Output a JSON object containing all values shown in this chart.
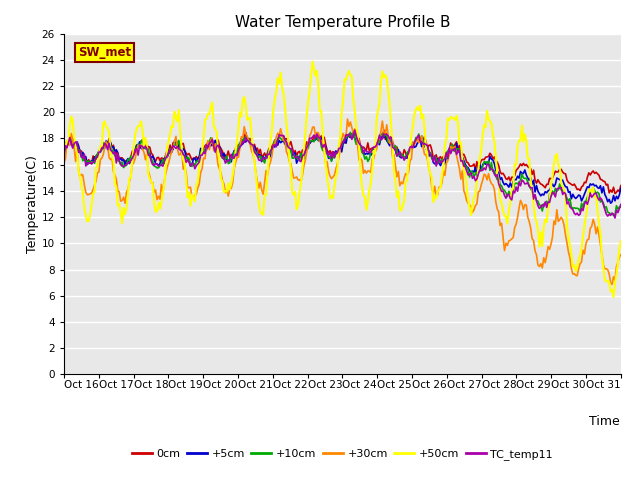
{
  "title": "Water Temperature Profile B",
  "xlabel": "Time",
  "ylabel": "Temperature(C)",
  "ylim": [
    0,
    26
  ],
  "yticks": [
    0,
    2,
    4,
    6,
    8,
    10,
    12,
    14,
    16,
    18,
    20,
    22,
    24,
    26
  ],
  "series": {
    "0cm": {
      "color": "#cc0000",
      "lw": 1.2
    },
    "+5cm": {
      "color": "#0000cc",
      "lw": 1.2
    },
    "+10cm": {
      "color": "#00aa00",
      "lw": 1.2
    },
    "+30cm": {
      "color": "#ff8800",
      "lw": 1.2
    },
    "+50cm": {
      "color": "#ffff00",
      "lw": 1.5
    },
    "TC_temp11": {
      "color": "#aa00aa",
      "lw": 1.2
    }
  },
  "sw_met_box_color": "#ffff00",
  "sw_met_text_color": "#800000",
  "sw_met_border_color": "#800000",
  "plot_background": "#e8e8e8",
  "grid_color": "#ffffff",
  "fig_background": "#ffffff",
  "title_fontsize": 11,
  "axis_fontsize": 9,
  "tick_fontsize": 7.5
}
